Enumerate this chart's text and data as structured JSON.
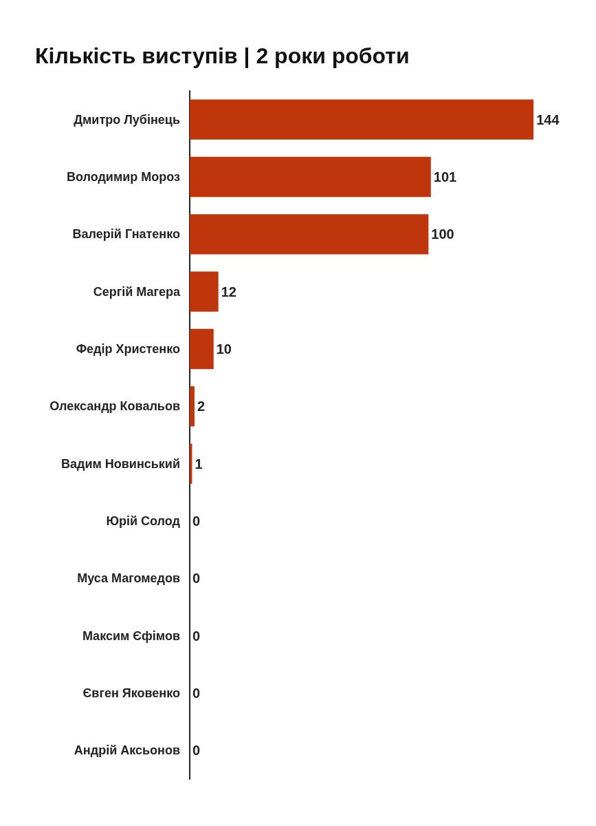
{
  "chart_data": {
    "type": "bar",
    "orientation": "horizontal",
    "title": "Кількість виступів | 2 роки роботи",
    "categories": [
      "Дмитро Лубінець",
      "Володимир Мороз",
      "Валерій Гнатенко",
      "Сергій Магера",
      "Федір Христенко",
      "Олександр Ковальов",
      "Вадим Новинський",
      "Юрій Солод",
      "Муса Магомедов",
      "Максим Єфімов",
      "Євген Яковенко",
      "Андрій Аксьонов"
    ],
    "values": [
      144,
      101,
      100,
      12,
      10,
      2,
      1,
      0,
      0,
      0,
      0,
      0
    ],
    "color": "#bf360c",
    "data_labels": true
  }
}
